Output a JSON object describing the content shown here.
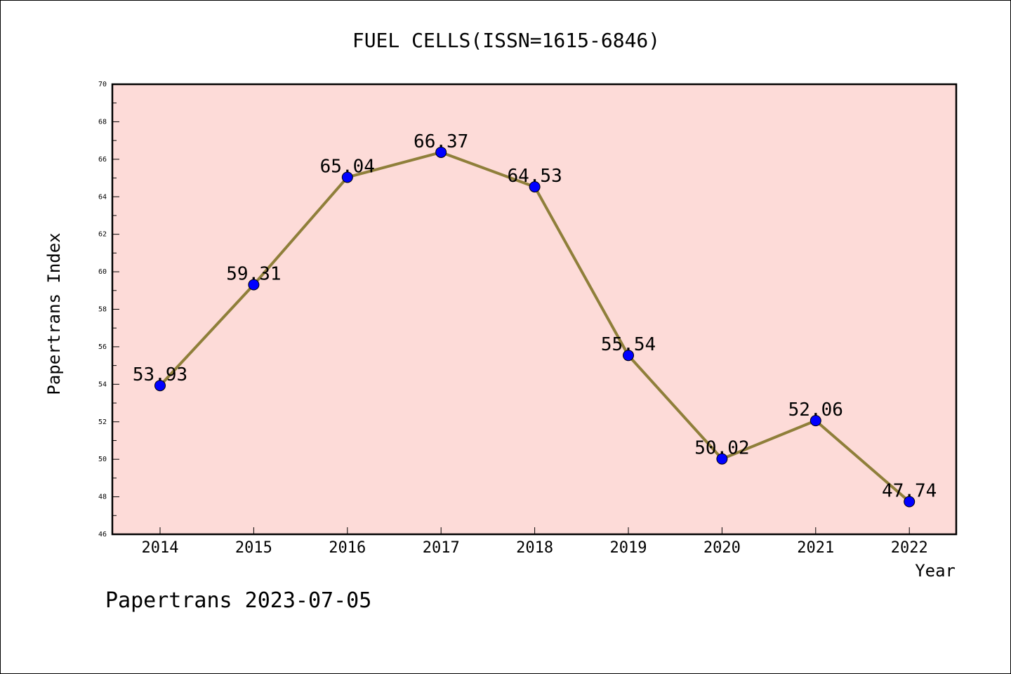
{
  "chart_data": {
    "type": "line",
    "title": "FUEL CELLS(ISSN=1615-6846)",
    "xlabel": "Year",
    "ylabel": "Papertrans Index",
    "categories": [
      "2014",
      "2015",
      "2016",
      "2017",
      "2018",
      "2019",
      "2020",
      "2021",
      "2022"
    ],
    "series": [
      {
        "values": [
          53.93,
          59.31,
          65.04,
          66.37,
          64.53,
          55.54,
          50.02,
          52.06,
          47.74
        ],
        "labels": [
          "53.93",
          "59.31",
          "65.04",
          "66.37",
          "64.53",
          "55.54",
          "50.02",
          "52.06",
          "47.74"
        ],
        "line_color": "#8f7f3a",
        "marker_color": "#0000ff"
      }
    ],
    "ylim": [
      46,
      70
    ],
    "y_ticks": [
      "46",
      "48",
      "50",
      "52",
      "54",
      "56",
      "58",
      "60",
      "62",
      "64",
      "66",
      "68",
      "70"
    ],
    "plot_background": "#fddbd8",
    "grid": false,
    "legend": "none"
  },
  "footer": "Papertrans 2023-07-05"
}
